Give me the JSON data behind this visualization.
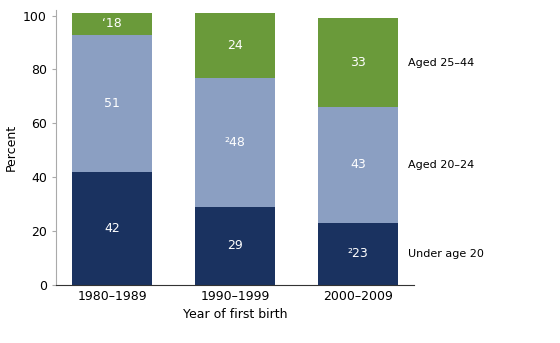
{
  "categories": [
    "1980–1989",
    "1990–1999",
    "2000–2009"
  ],
  "under20": [
    42,
    29,
    23
  ],
  "aged2024": [
    51,
    48,
    43
  ],
  "aged2544": [
    8,
    24,
    33
  ],
  "under20_labels": [
    "42",
    "29",
    "²23"
  ],
  "aged2024_labels": [
    "51",
    "²48",
    "43"
  ],
  "aged2544_labels": [
    "‘18",
    "24",
    "33"
  ],
  "color_under20": "#1a3260",
  "color_aged2024": "#8b9fc2",
  "color_aged2544": "#6a9a3a",
  "legend_labels": [
    "Aged 25–44",
    "Aged 20–24",
    "Under age 20"
  ],
  "ylabel": "Percent",
  "xlabel": "Year of first birth",
  "ylim": [
    0,
    102
  ],
  "yticks": [
    0,
    20,
    40,
    60,
    80,
    100
  ],
  "bar_width": 0.65,
  "text_color": "#ffffff",
  "background_color": "#ffffff"
}
